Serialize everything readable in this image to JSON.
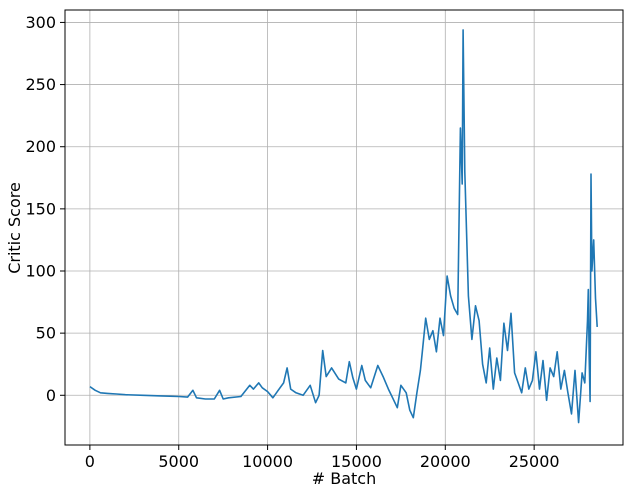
{
  "chart_data": {
    "type": "line",
    "title": "",
    "xlabel": "# Batch",
    "ylabel": "Critic Score",
    "xlim": [
      -1400,
      30000
    ],
    "ylim": [
      -40,
      310
    ],
    "x_ticks": [
      0,
      5000,
      10000,
      15000,
      20000,
      25000
    ],
    "x_tick_labels": [
      "0",
      "5000",
      "10000",
      "15000",
      "20000",
      "25000"
    ],
    "y_ticks": [
      0,
      50,
      100,
      150,
      200,
      250,
      300
    ],
    "y_tick_labels": [
      "0",
      "50",
      "100",
      "150",
      "200",
      "250",
      "300"
    ],
    "grid": true,
    "series": [
      {
        "color": "#1f77b4",
        "x": [
          0,
          300,
          600,
          1000,
          1500,
          2000,
          3000,
          4000,
          5000,
          5500,
          5800,
          6000,
          6500,
          7000,
          7300,
          7500,
          7800,
          8500,
          9000,
          9200,
          9500,
          9700,
          10000,
          10300,
          10600,
          10900,
          11100,
          11300,
          11600,
          12000,
          12400,
          12700,
          12900,
          13100,
          13300,
          13600,
          14000,
          14400,
          14600,
          14800,
          15000,
          15300,
          15500,
          15800,
          16200,
          16500,
          16800,
          17100,
          17300,
          17500,
          17800,
          18000,
          18200,
          18400,
          18600,
          18700,
          18900,
          19100,
          19300,
          19500,
          19700,
          19900,
          20100,
          20300,
          20500,
          20700,
          20850,
          20950,
          21000,
          21100,
          21300,
          21500,
          21700,
          21900,
          22100,
          22300,
          22500,
          22700,
          22900,
          23100,
          23300,
          23500,
          23700,
          23900,
          24100,
          24300,
          24500,
          24700,
          24900,
          25100,
          25300,
          25500,
          25700,
          25900,
          26100,
          26300,
          26500,
          26700,
          26900,
          27100,
          27300,
          27500,
          27700,
          27850,
          28000,
          28050,
          28100,
          28150,
          28200,
          28250,
          28350,
          28450,
          28550
        ],
        "y": [
          7,
          4,
          2,
          1.5,
          1,
          0.5,
          0,
          -0.5,
          -1,
          -1.5,
          4,
          -2,
          -3,
          -3,
          4,
          -3,
          -2,
          -1,
          8,
          5,
          10,
          6,
          3,
          -2,
          4,
          10,
          22,
          5,
          2,
          0,
          8,
          -6,
          0,
          36,
          15,
          22,
          13,
          10,
          27,
          14,
          5,
          24,
          12,
          6,
          24,
          15,
          5,
          -4,
          -10,
          8,
          2,
          -12,
          -18,
          2,
          20,
          34,
          62,
          45,
          52,
          35,
          62,
          48,
          96,
          80,
          70,
          65,
          215,
          170,
          294,
          180,
          80,
          45,
          72,
          60,
          25,
          10,
          38,
          5,
          30,
          12,
          58,
          36,
          66,
          18,
          10,
          2,
          22,
          5,
          12,
          35,
          5,
          28,
          -4,
          22,
          15,
          35,
          5,
          20,
          2,
          -15,
          20,
          -22,
          18,
          10,
          60,
          85,
          30,
          -5,
          178,
          100,
          125,
          78,
          55
        ]
      }
    ]
  }
}
